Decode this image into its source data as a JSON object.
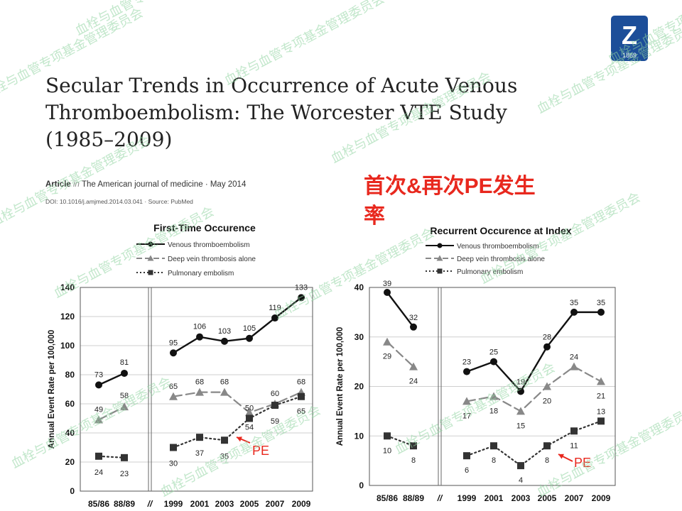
{
  "slide": {
    "title_lines": [
      "Secular Trends in Occurrence of Acute Venous",
      "Thromboembolism: The Worcester VTE Study",
      "(1985–2009)"
    ],
    "cn_heading_lines": [
      "首次&再次PE发生",
      "率"
    ],
    "logo_text": "Z",
    "logo_year": "1869",
    "watermark_text": "血栓与血管专项基金管理委员会",
    "colors": {
      "title": "#222222",
      "cn_heading": "#e8281e",
      "logo_bg": "#1c4e99",
      "pe_annotation": "#e8281e"
    }
  },
  "citation": {
    "label": "Article",
    "in": "in",
    "journal": "The American journal of medicine · May 2014",
    "doi": "DOI: 10.1016/j.amjmed.2014.03.041 · Source: PubMed"
  },
  "chart_data": [
    {
      "type": "line",
      "title": "First-Time Occurence",
      "ylabel": "Annual Event Rate per 100,000",
      "ylim": [
        0,
        140
      ],
      "yticks": [
        0,
        20,
        40,
        60,
        80,
        100,
        120,
        140
      ],
      "categories": [
        "85/86",
        "88/89",
        "//",
        "1999",
        "2001",
        "2003",
        "2005",
        "2007",
        "2009"
      ],
      "break_after": "88/89",
      "legend_position": "top",
      "series": [
        {
          "name": "Venous thromboembolism",
          "style": "solid",
          "marker": "circle",
          "color": "#111111",
          "values": {
            "85/86": 73,
            "88/89": 81,
            "1999": 95,
            "2001": 106,
            "2003": 103,
            "2005": 105,
            "2007": 119,
            "2009": 133
          }
        },
        {
          "name": "Deep vein thrombosis alone",
          "style": "dashed",
          "marker": "triangle",
          "color": "#888888",
          "values": {
            "85/86": 49,
            "88/89": 58,
            "1999": 65,
            "2001": 68,
            "2003": 68,
            "2005": 54,
            "2007": 60,
            "2009": 68
          }
        },
        {
          "name": "Pulmonary embolism",
          "style": "dotted",
          "marker": "square",
          "color": "#333333",
          "values": {
            "85/86": 24,
            "88/89": 23,
            "1999": 30,
            "2001": 37,
            "2003": 35,
            "2005": 50,
            "2007": 59,
            "2009": 65
          }
        }
      ],
      "annotation": "PE"
    },
    {
      "type": "line",
      "title": "Recurrent Occurence at Index",
      "ylabel": "Annual Event Rate per 100,000",
      "ylim": [
        0,
        40
      ],
      "yticks": [
        0,
        10,
        20,
        30,
        40
      ],
      "categories": [
        "85/86",
        "88/89",
        "//",
        "1999",
        "2001",
        "2003",
        "2005",
        "2007",
        "2009"
      ],
      "break_after": "88/89",
      "legend_position": "top",
      "series": [
        {
          "name": "Venous thromboembolism",
          "style": "solid",
          "marker": "circle",
          "color": "#111111",
          "values": {
            "85/86": 39,
            "88/89": 32,
            "1999": 23,
            "2001": 25,
            "2003": 19,
            "2005": 28,
            "2007": 35,
            "2009": 35
          }
        },
        {
          "name": "Deep vein thrombosis alone",
          "style": "dashed",
          "marker": "triangle",
          "color": "#888888",
          "values": {
            "85/86": 29,
            "88/89": 24,
            "1999": 17,
            "2001": 18,
            "2003": 15,
            "2005": 20,
            "2007": 24,
            "2009": 21
          }
        },
        {
          "name": "Pulmonary embolism",
          "style": "dotted",
          "marker": "square",
          "color": "#333333",
          "values": {
            "85/86": 10,
            "88/89": 8,
            "1999": 6,
            "2001": 8,
            "2003": 4,
            "2005": 8,
            "2007": 11,
            "2009": 13
          }
        }
      ],
      "annotation": "PE"
    }
  ]
}
